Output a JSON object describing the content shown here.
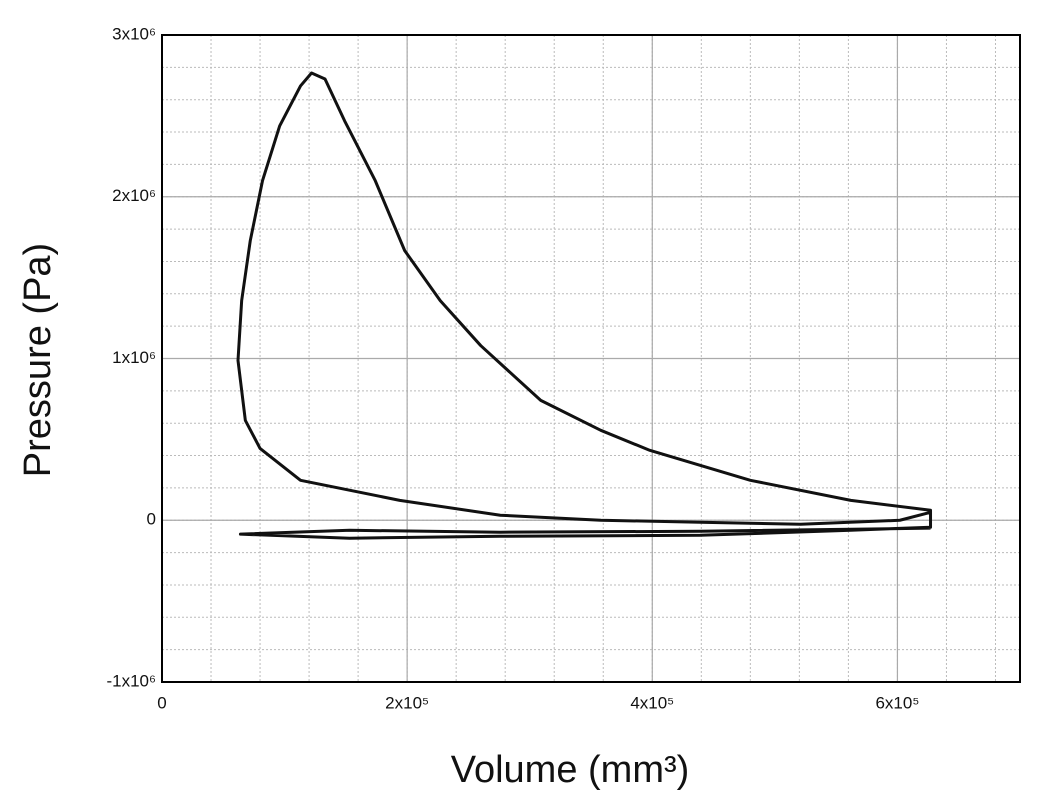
{
  "chart_data": {
    "type": "line",
    "xlabel": "Volume (mm³)",
    "ylabel": "Pressure (Pa)",
    "x": [
      627000,
      602000,
      521000,
      439000,
      358000,
      276000,
      194000,
      113000,
      80000,
      68000,
      62000,
      65000,
      72000,
      82000,
      96000,
      113000,
      122000,
      133000,
      149000,
      174000,
      198000,
      227000,
      260000,
      309000,
      358000,
      398000,
      480000,
      562000,
      627000,
      627000,
      562000,
      439000,
      276000,
      153000,
      64000,
      153000,
      276000,
      439000,
      627000
    ],
    "values": [
      49000,
      0,
      -25000,
      -12000,
      0,
      31000,
      123000,
      247000,
      444000,
      617000,
      988000,
      1358000,
      1728000,
      2099000,
      2438000,
      2685000,
      2765000,
      2728000,
      2469000,
      2099000,
      1667000,
      1358000,
      1080000,
      741000,
      556000,
      432000,
      247000,
      123000,
      62000,
      -43000,
      -62000,
      -93000,
      -99000,
      -111000,
      -86000,
      -62000,
      -74000,
      -68000,
      -49000
    ],
    "color": "#111111",
    "xlim": [
      0,
      700000
    ],
    "xticks": [
      0,
      {
        "value": 200000,
        "label": "2x10⁵"
      },
      {
        "value": 400000,
        "label": "4x10⁵"
      },
      {
        "value": 600000,
        "label": "6x10⁵"
      }
    ],
    "ylim": [
      -1000000,
      3000000
    ],
    "yticks": [
      {
        "value": -1000000,
        "label": "-1x10⁶"
      },
      0,
      {
        "value": 1000000,
        "label": "1x10⁶"
      },
      {
        "value": 2000000,
        "label": "2x10⁶"
      },
      {
        "value": 3000000,
        "label": "3x10⁶"
      }
    ],
    "grid": true,
    "minor_grid": true
  }
}
